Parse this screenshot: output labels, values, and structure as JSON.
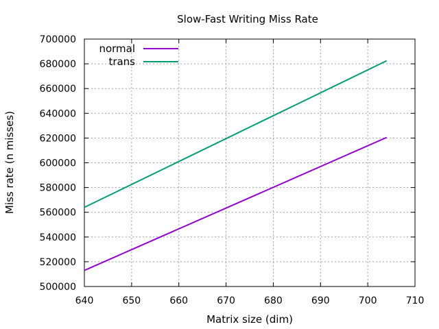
{
  "chart_data": {
    "type": "line",
    "title": "Slow-Fast Writing Miss Rate",
    "xlabel": "Matrix size (dim)",
    "ylabel": "Miss rate (n misses)",
    "xlim": [
      640,
      710
    ],
    "ylim": [
      500000,
      700000
    ],
    "xticks": [
      640,
      650,
      660,
      670,
      680,
      690,
      700,
      710
    ],
    "yticks": [
      500000,
      520000,
      540000,
      560000,
      580000,
      600000,
      620000,
      640000,
      660000,
      680000,
      700000
    ],
    "grid": true,
    "legend_position": "top-left",
    "series": [
      {
        "name": "normal",
        "color": "#9400d3",
        "x": [
          640,
          704
        ],
        "y": [
          513000,
          620500
        ]
      },
      {
        "name": "trans",
        "color": "#009e73",
        "x": [
          640,
          704
        ],
        "y": [
          564000,
          682500
        ]
      }
    ]
  }
}
